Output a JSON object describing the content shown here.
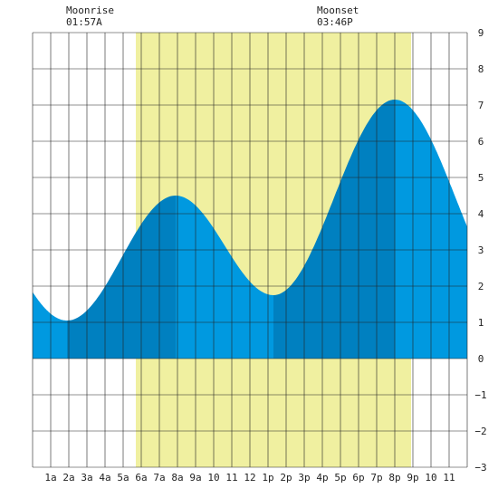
{
  "annotations": [
    {
      "label": "Moonrise",
      "time": "01:57A",
      "hour": 1.95
    },
    {
      "label": "Moonset",
      "time": "03:46P",
      "hour": 15.77
    }
  ],
  "chart_data": {
    "type": "area",
    "title": "",
    "xlabel": "",
    "ylabel": "",
    "xlim": [
      0,
      24
    ],
    "ylim": [
      -3,
      9
    ],
    "grid": true,
    "x_tick_labels": [
      "1a",
      "2a",
      "3a",
      "4a",
      "5a",
      "6a",
      "7a",
      "8a",
      "9a",
      "10",
      "11",
      "12",
      "1p",
      "2p",
      "3p",
      "4p",
      "5p",
      "6p",
      "7p",
      "8p",
      "9p",
      "10",
      "11"
    ],
    "y_tick_labels": [
      "9",
      "8",
      "7",
      "6",
      "5",
      "4",
      "3",
      "2",
      "1",
      "0",
      "−1",
      "−2",
      "−3"
    ],
    "daylight_hours": [
      5.7,
      20.9
    ],
    "tide_extremes": [
      {
        "hour": 1.9,
        "height": 1.05,
        "kind": "low"
      },
      {
        "hour": 7.9,
        "height": 4.5,
        "kind": "high"
      },
      {
        "hour": 13.3,
        "height": 1.75,
        "kind": "low"
      },
      {
        "hour": 20.0,
        "height": 7.15,
        "kind": "high"
      }
    ],
    "series": [
      {
        "x": [
          0,
          1,
          2,
          3,
          4,
          5,
          6,
          7,
          8,
          9,
          10,
          11,
          12,
          13,
          14,
          15,
          16,
          17,
          18,
          19,
          20,
          21,
          22,
          23,
          24
        ],
        "values": [
          2.2,
          1.4,
          1.05,
          1.3,
          2.0,
          2.9,
          3.7,
          4.3,
          4.5,
          4.2,
          3.4,
          2.6,
          2.0,
          1.75,
          2.0,
          2.6,
          3.7,
          5.0,
          6.2,
          6.9,
          7.15,
          6.9,
          5.9,
          4.6,
          3.0
        ]
      }
    ],
    "colors": {
      "daylight": "#f0f0a0",
      "tide_light": "#0099e0",
      "tide_dark": "#0080c0",
      "grid": "#222222"
    }
  }
}
